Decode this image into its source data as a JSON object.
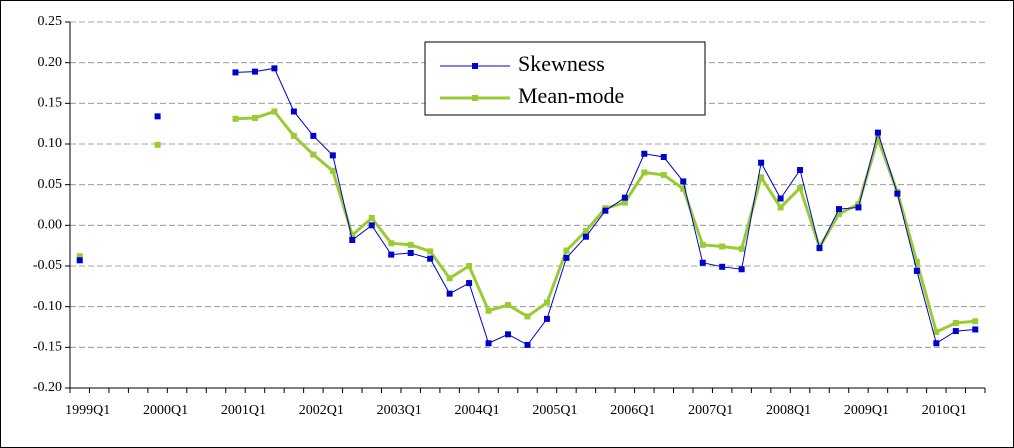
{
  "chart_data": {
    "type": "line",
    "categories": [
      "1999Q1",
      null,
      null,
      null,
      "2000Q1",
      null,
      null,
      null,
      "2001Q1",
      null,
      null,
      null,
      "2002Q1",
      null,
      null,
      null,
      "2003Q1",
      null,
      null,
      null,
      "2004Q1",
      null,
      null,
      null,
      "2005Q1",
      null,
      null,
      null,
      "2006Q1",
      null,
      null,
      null,
      "2007Q1",
      null,
      null,
      null,
      "2008Q1",
      null,
      null,
      null,
      "2009Q1",
      null,
      null,
      null,
      "2010Q1",
      null,
      null
    ],
    "series": [
      {
        "name": "Skewness",
        "color": "#0000cc",
        "line_width": 1,
        "values": [
          -0.043,
          null,
          null,
          null,
          0.134,
          null,
          null,
          null,
          0.188,
          0.189,
          0.193,
          0.14,
          0.11,
          0.086,
          -0.018,
          0.0,
          -0.036,
          -0.034,
          -0.041,
          -0.084,
          -0.071,
          -0.145,
          -0.134,
          -0.147,
          -0.115,
          -0.04,
          -0.014,
          0.018,
          0.034,
          0.088,
          0.084,
          0.054,
          -0.046,
          -0.051,
          -0.054,
          0.077,
          0.033,
          0.068,
          -0.028,
          0.02,
          0.022,
          0.114,
          0.039,
          -0.056,
          -0.145,
          -0.13,
          -0.128
        ]
      },
      {
        "name": "Mean-mode",
        "color": "#99cc33",
        "line_width": 3,
        "values": [
          -0.038,
          null,
          null,
          null,
          0.099,
          null,
          null,
          null,
          0.131,
          0.132,
          0.14,
          0.11,
          0.087,
          0.067,
          -0.012,
          0.009,
          -0.022,
          -0.024,
          -0.032,
          -0.065,
          -0.05,
          -0.105,
          -0.098,
          -0.112,
          -0.095,
          -0.031,
          -0.007,
          0.021,
          0.028,
          0.065,
          0.062,
          0.045,
          -0.024,
          -0.026,
          -0.029,
          0.059,
          0.022,
          0.046,
          -0.027,
          0.014,
          0.026,
          0.106,
          0.041,
          -0.045,
          -0.131,
          -0.12,
          -0.118
        ]
      }
    ],
    "ylim": [
      -0.2,
      0.25
    ],
    "yticks": [
      {
        "value": -0.2,
        "label": "-0.20"
      },
      -0.15,
      {
        "value": -0.1,
        "label": "-0.10"
      },
      -0.05,
      {
        "value": 0,
        "label": "0.00"
      },
      0.05,
      {
        "value": 0.1,
        "label": "0.10"
      },
      0.15,
      {
        "value": 0.2,
        "label": "0.20"
      },
      0.25
    ],
    "grid": true
  }
}
